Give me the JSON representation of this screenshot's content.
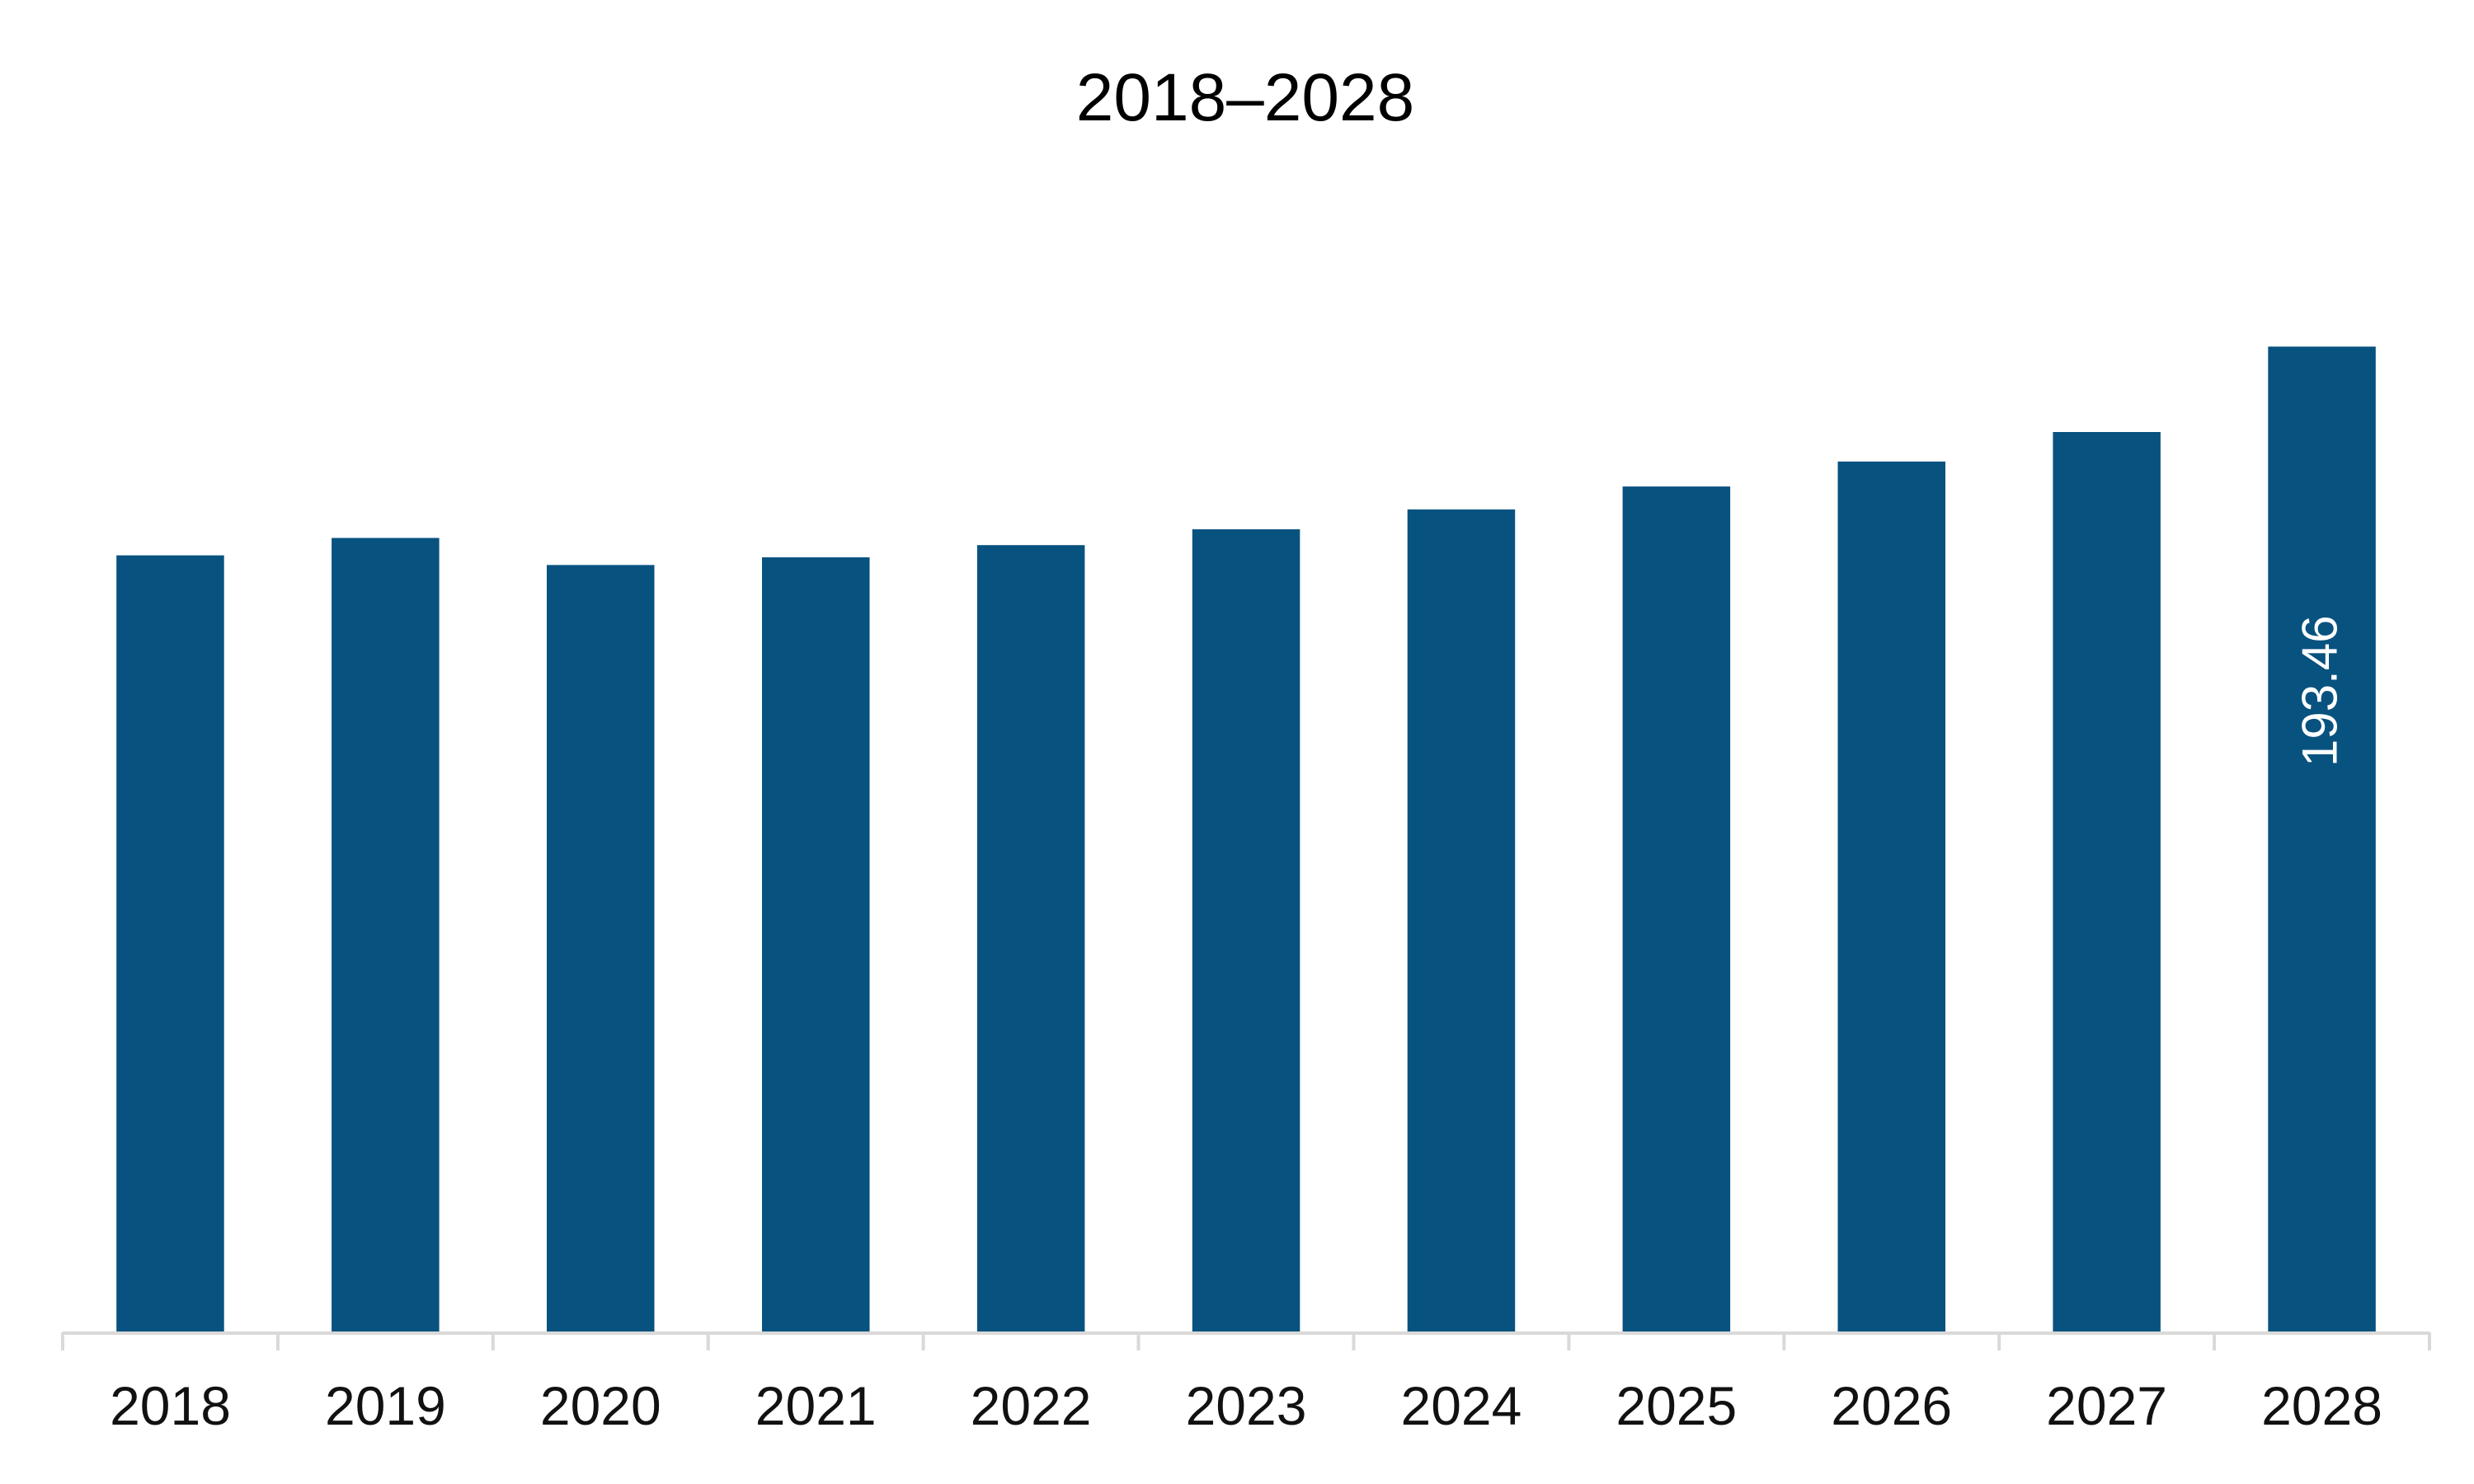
{
  "chart_data": {
    "type": "bar",
    "title": "2018–2028",
    "xlabel": "",
    "ylabel": "",
    "categories": [
      "2018",
      "2019",
      "2020",
      "2021",
      "2022",
      "2023",
      "2024",
      "2025",
      "2026",
      "2027",
      "2028"
    ],
    "series": [
      {
        "values": [
          152.5,
          155.9,
          150.6,
          152.1,
          154.5,
          157.6,
          161.5,
          166.0,
          170.9,
          176.7,
          193.46
        ]
      }
    ],
    "data_labels": [
      {
        "category": "2028",
        "text": "193.46"
      }
    ],
    "ylim": [
      0,
      200
    ],
    "grid": false,
    "legend": "none",
    "colors": {
      "bar": "#08527F",
      "axis": "#D9D9D9",
      "text": "#111111",
      "data_label": "#FFFFFF",
      "background": "#FFFFFF"
    }
  }
}
